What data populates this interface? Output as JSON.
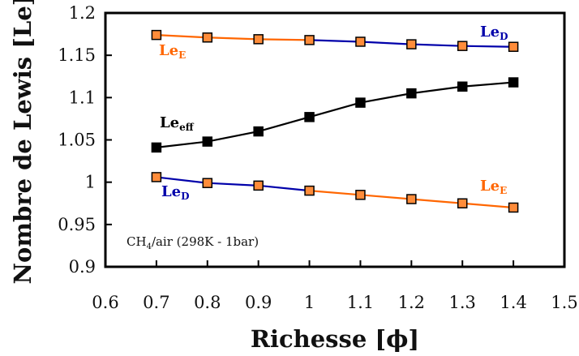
{
  "chart_data": {
    "type": "line",
    "title": "",
    "xlabel": "Richesse [ϕ]",
    "ylabel": "Nombre de Lewis [Le]",
    "xlim": [
      0.6,
      1.5
    ],
    "ylim": [
      0.9,
      1.2
    ],
    "xticks": [
      "0.6",
      "0.7",
      "0.8",
      "0.9",
      "1",
      "1.1",
      "1.2",
      "1.3",
      "1.4",
      "1.5"
    ],
    "yticks": [
      "0.9",
      "0.95",
      "1",
      "1.05",
      "1.1",
      "1.15",
      "1.2"
    ],
    "grid": false,
    "annotation": {
      "main": "CH",
      "sub": "4",
      "rest": "/air (298K - 1bar)"
    },
    "colors": {
      "orange": "#ff6600",
      "blue": "#0000aa",
      "black": "#000000"
    },
    "x": [
      0.7,
      0.8,
      0.9,
      1.0,
      1.1,
      1.2,
      1.3,
      1.4
    ],
    "series": [
      {
        "id": "upper",
        "segments": [
          {
            "from": 0,
            "to": 3,
            "color": "#ff6600"
          },
          {
            "from": 3,
            "to": 7,
            "color": "#0000aa"
          }
        ],
        "marker_fill": "#ff8c3a",
        "values": [
          1.174,
          1.171,
          1.169,
          1.168,
          1.166,
          1.163,
          1.161,
          1.16
        ]
      },
      {
        "id": "eff",
        "segments": [
          {
            "from": 0,
            "to": 7,
            "color": "#000000"
          }
        ],
        "marker_fill": "#000000",
        "values": [
          1.041,
          1.048,
          1.06,
          1.077,
          1.094,
          1.105,
          1.113,
          1.118
        ]
      },
      {
        "id": "lower",
        "segments": [
          {
            "from": 0,
            "to": 3,
            "color": "#0000aa"
          },
          {
            "from": 3,
            "to": 7,
            "color": "#ff6600"
          }
        ],
        "marker_fill": "#ff8c3a",
        "values": [
          1.006,
          0.999,
          0.996,
          0.99,
          0.985,
          0.98,
          0.975,
          0.97
        ]
      }
    ],
    "labels": [
      {
        "id": "upper-left",
        "main": "Le",
        "sub": "E",
        "color": "#ff6600"
      },
      {
        "id": "upper-right",
        "main": "Le",
        "sub": "D",
        "color": "#0000aa"
      },
      {
        "id": "eff",
        "main": "Le",
        "sub": "eff",
        "color": "#000000"
      },
      {
        "id": "lower-left",
        "main": "Le",
        "sub": "D",
        "color": "#0000aa"
      },
      {
        "id": "lower-right",
        "main": "Le",
        "sub": "E",
        "color": "#ff6600"
      }
    ]
  }
}
